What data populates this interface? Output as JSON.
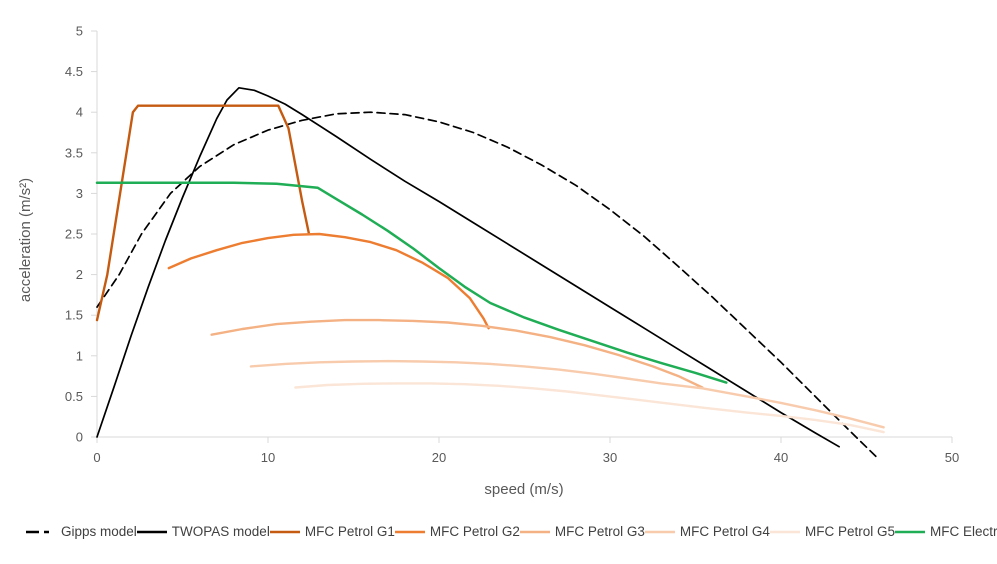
{
  "chart": {
    "axis_color": "#d9d9d9",
    "tick_text_color": "#595959",
    "axis_title_color": "#595959",
    "legend_text_color": "#404040"
  },
  "chart_data": {
    "type": "line",
    "title": "",
    "xlabel": "speed (m/s)",
    "ylabel": "acceleration (m/s²)",
    "xlim": [
      0,
      50
    ],
    "ylim": [
      0,
      5
    ],
    "grid": false,
    "legend_position": "bottom",
    "x_ticks": [
      0,
      10,
      20,
      30,
      40,
      50
    ],
    "y_ticks": [
      0,
      0.5,
      1,
      1.5,
      2,
      2.5,
      3,
      3.5,
      4,
      4.5,
      5
    ],
    "series": [
      {
        "name": "Gipps model",
        "color": "#000000",
        "dash": "8 5",
        "width": 1.7,
        "points": [
          [
            0,
            1.6
          ],
          [
            1.3,
            2.0
          ],
          [
            2.6,
            2.5
          ],
          [
            4.3,
            3.0
          ],
          [
            6,
            3.33
          ],
          [
            8,
            3.6
          ],
          [
            10,
            3.78
          ],
          [
            12,
            3.9
          ],
          [
            14,
            3.98
          ],
          [
            16,
            4.0
          ],
          [
            18,
            3.97
          ],
          [
            20,
            3.88
          ],
          [
            22,
            3.75
          ],
          [
            24,
            3.57
          ],
          [
            26,
            3.35
          ],
          [
            28,
            3.1
          ],
          [
            30,
            2.8
          ],
          [
            32,
            2.47
          ],
          [
            34,
            2.1
          ],
          [
            36,
            1.72
          ],
          [
            38,
            1.32
          ],
          [
            40,
            0.92
          ],
          [
            42,
            0.5
          ],
          [
            44,
            0.08
          ],
          [
            45.6,
            -0.25
          ]
        ]
      },
      {
        "name": "TWOPAS model",
        "color": "#000000",
        "dash": null,
        "width": 1.7,
        "points": [
          [
            0,
            0
          ],
          [
            1,
            0.62
          ],
          [
            2,
            1.25
          ],
          [
            3,
            1.85
          ],
          [
            4,
            2.42
          ],
          [
            5,
            2.95
          ],
          [
            6,
            3.45
          ],
          [
            7,
            3.92
          ],
          [
            7.6,
            4.15
          ],
          [
            8.3,
            4.3
          ],
          [
            9.2,
            4.27
          ],
          [
            10,
            4.2
          ],
          [
            11,
            4.1
          ],
          [
            12,
            3.97
          ],
          [
            14,
            3.7
          ],
          [
            16,
            3.42
          ],
          [
            18,
            3.15
          ],
          [
            20,
            2.9
          ],
          [
            22,
            2.64
          ],
          [
            24,
            2.38
          ],
          [
            26,
            2.12
          ],
          [
            28,
            1.86
          ],
          [
            30,
            1.6
          ],
          [
            32,
            1.34
          ],
          [
            34,
            1.08
          ],
          [
            36,
            0.82
          ],
          [
            38,
            0.56
          ],
          [
            40,
            0.3
          ],
          [
            42,
            0.05
          ],
          [
            43.4,
            -0.12
          ]
        ]
      },
      {
        "name": "MFC Petrol G1",
        "color": "#c55a11",
        "dash": null,
        "width": 2.4,
        "points": [
          [
            0,
            1.44
          ],
          [
            0.6,
            2.0
          ],
          [
            1.35,
            3.0
          ],
          [
            2.1,
            4.0
          ],
          [
            2.4,
            4.08
          ],
          [
            10.6,
            4.08
          ],
          [
            11.2,
            3.8
          ],
          [
            12.0,
            2.9
          ],
          [
            12.4,
            2.5
          ]
        ]
      },
      {
        "name": "MFC Petrol G2",
        "color": "#ed7d31",
        "dash": null,
        "width": 2.4,
        "points": [
          [
            4.2,
            2.08
          ],
          [
            5.5,
            2.2
          ],
          [
            7,
            2.3
          ],
          [
            8.5,
            2.39
          ],
          [
            10,
            2.45
          ],
          [
            11.5,
            2.49
          ],
          [
            13,
            2.5
          ],
          [
            14.5,
            2.46
          ],
          [
            16,
            2.4
          ],
          [
            17.5,
            2.3
          ],
          [
            19,
            2.15
          ],
          [
            20.5,
            1.96
          ],
          [
            21.8,
            1.71
          ],
          [
            22.6,
            1.46
          ],
          [
            22.9,
            1.34
          ]
        ]
      },
      {
        "name": "MFC Petrol G3",
        "color": "#f4b183",
        "dash": null,
        "width": 2.4,
        "points": [
          [
            6.7,
            1.26
          ],
          [
            8.5,
            1.33
          ],
          [
            10.5,
            1.39
          ],
          [
            12.5,
            1.42
          ],
          [
            14.5,
            1.44
          ],
          [
            16.5,
            1.44
          ],
          [
            18.5,
            1.43
          ],
          [
            20.5,
            1.41
          ],
          [
            22.5,
            1.37
          ],
          [
            24.5,
            1.31
          ],
          [
            26.5,
            1.23
          ],
          [
            28.5,
            1.13
          ],
          [
            30.5,
            1.01
          ],
          [
            32.5,
            0.87
          ],
          [
            34,
            0.75
          ],
          [
            35.4,
            0.61
          ]
        ]
      },
      {
        "name": "MFC Petrol G4",
        "color": "#f8cbad",
        "dash": null,
        "width": 2.4,
        "points": [
          [
            9,
            0.87
          ],
          [
            11,
            0.9
          ],
          [
            13,
            0.92
          ],
          [
            15,
            0.93
          ],
          [
            17,
            0.935
          ],
          [
            19,
            0.93
          ],
          [
            21,
            0.92
          ],
          [
            23,
            0.9
          ],
          [
            25,
            0.87
          ],
          [
            27,
            0.83
          ],
          [
            29,
            0.78
          ],
          [
            31,
            0.72
          ],
          [
            33,
            0.66
          ],
          [
            35.4,
            0.6
          ],
          [
            38,
            0.5
          ],
          [
            40,
            0.42
          ],
          [
            42,
            0.33
          ],
          [
            44,
            0.23
          ],
          [
            46,
            0.12
          ]
        ]
      },
      {
        "name": "MFC Petrol G5",
        "color": "#fbe5d6",
        "dash": null,
        "width": 2.4,
        "points": [
          [
            11.6,
            0.61
          ],
          [
            13.5,
            0.64
          ],
          [
            15.5,
            0.655
          ],
          [
            17.5,
            0.66
          ],
          [
            19.5,
            0.66
          ],
          [
            21.5,
            0.65
          ],
          [
            23.5,
            0.63
          ],
          [
            25.5,
            0.6
          ],
          [
            27.5,
            0.56
          ],
          [
            29.5,
            0.51
          ],
          [
            31.5,
            0.46
          ],
          [
            33.5,
            0.41
          ],
          [
            35.5,
            0.36
          ],
          [
            38,
            0.3
          ],
          [
            40,
            0.26
          ],
          [
            42,
            0.21
          ],
          [
            44,
            0.15
          ],
          [
            46,
            0.06
          ]
        ]
      },
      {
        "name": "MFC Electric",
        "color": "#1fad55",
        "dash": null,
        "width": 2.5,
        "points": [
          [
            0,
            3.13
          ],
          [
            4,
            3.13
          ],
          [
            8,
            3.13
          ],
          [
            10.5,
            3.12
          ],
          [
            12.9,
            3.07
          ],
          [
            14,
            2.93
          ],
          [
            15.5,
            2.74
          ],
          [
            17,
            2.54
          ],
          [
            18.5,
            2.32
          ],
          [
            20,
            2.08
          ],
          [
            21.5,
            1.85
          ],
          [
            23,
            1.65
          ],
          [
            25,
            1.47
          ],
          [
            27,
            1.32
          ],
          [
            29,
            1.18
          ],
          [
            31,
            1.04
          ],
          [
            33,
            0.91
          ],
          [
            35,
            0.79
          ],
          [
            36.8,
            0.67
          ]
        ]
      }
    ]
  }
}
